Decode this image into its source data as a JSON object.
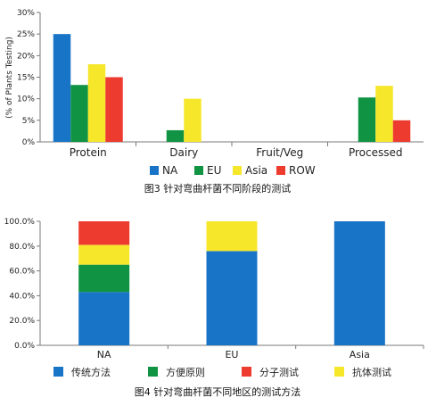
{
  "colors": {
    "blue": "#1874c7",
    "green": "#109444",
    "yellow": "#f7e72b",
    "red": "#ee3b2f",
    "axis": "#7a7a7a"
  },
  "chart_data": [
    {
      "type": "bar",
      "categories": [
        "Protein",
        "Dairy",
        "Fruit/Veg",
        "Processed"
      ],
      "series": [
        {
          "name": "NA",
          "color": "#1874c7",
          "values": [
            25,
            0,
            0,
            0
          ]
        },
        {
          "name": "EU",
          "color": "#109444",
          "values": [
            13.2,
            2.7,
            0,
            10.3
          ]
        },
        {
          "name": "Asia",
          "color": "#f7e72b",
          "values": [
            18,
            10,
            0,
            13
          ]
        },
        {
          "name": "ROW",
          "color": "#ee3b2f",
          "values": [
            15,
            0,
            0,
            5
          ]
        }
      ],
      "ylabel": "(% of Plants Testing)",
      "ylim": [
        0,
        30
      ],
      "yticks": [
        "0%",
        "5%",
        "10%",
        "15%",
        "20%",
        "25%",
        "30%"
      ],
      "legend_position": "bottom",
      "caption": "图3  针对弯曲杆菌不同阶段的测试"
    },
    {
      "type": "bar",
      "stacked": true,
      "categories": [
        "NA",
        "EU",
        "Asia"
      ],
      "series": [
        {
          "name": "传统方法",
          "color": "#1874c7",
          "values": [
            43,
            76,
            100
          ]
        },
        {
          "name": "方便原则",
          "color": "#109444",
          "values": [
            22,
            0,
            0
          ]
        },
        {
          "name": "分子测试",
          "color": "#ee3b2f",
          "values": [
            0,
            0,
            0
          ]
        },
        {
          "name": "抗体测试",
          "color": "#f7e72b",
          "values": [
            16,
            24,
            0
          ]
        },
        {
          "name": "",
          "color": "#ee3b2f",
          "values": [
            19,
            0,
            0
          ]
        }
      ],
      "ylim": [
        0,
        100
      ],
      "yticks": [
        "0.0%",
        "20.0%",
        "40.0%",
        "60.0%",
        "80.0%",
        "100.0%"
      ],
      "legend": [
        "传统方法",
        "方便原则",
        "分子测试",
        "抗体测试"
      ],
      "legend_position": "bottom",
      "caption": "图4  针对弯曲杆菌不同地区的测试方法"
    }
  ]
}
